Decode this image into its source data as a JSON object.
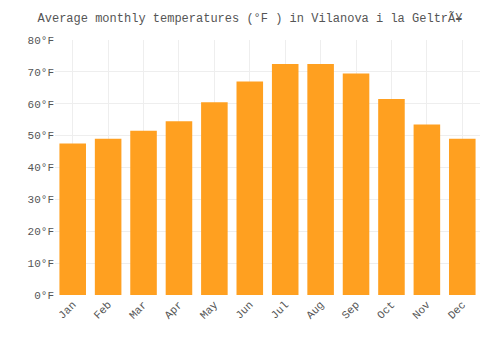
{
  "chart_data": {
    "type": "bar",
    "title": "Average monthly temperatures (°F ) in Vilanova i la GeltrÃ¥",
    "categories": [
      "Jan",
      "Feb",
      "Mar",
      "Apr",
      "May",
      "Jun",
      "Jul",
      "Aug",
      "Sep",
      "Oct",
      "Nov",
      "Dec"
    ],
    "values": [
      47.5,
      49.0,
      51.5,
      54.5,
      60.5,
      67.0,
      72.5,
      72.5,
      69.5,
      61.5,
      53.5,
      49.0
    ],
    "color": "#FFA020",
    "ylim": [
      0,
      80
    ],
    "yticks": [
      {
        "value": 0,
        "label": "0°F"
      },
      {
        "value": 10,
        "label": "10°F"
      },
      {
        "value": 20,
        "label": "20°F"
      },
      {
        "value": 30,
        "label": "30°F"
      },
      {
        "value": 40,
        "label": "40°F"
      },
      {
        "value": 50,
        "label": "50°F"
      },
      {
        "value": 60,
        "label": "60°F"
      },
      {
        "value": 70,
        "label": "70°F"
      },
      {
        "value": 80,
        "label": "80°F"
      }
    ],
    "grid": true
  }
}
